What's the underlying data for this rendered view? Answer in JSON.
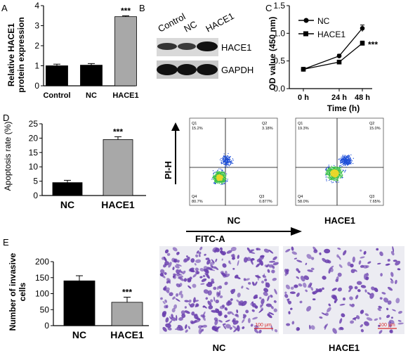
{
  "colors": {
    "black": "#000000",
    "gray": "#a8a8a8",
    "stain": "#6a3fae",
    "scale": "#d92c2c",
    "dot_blue": "#1e4fd8",
    "dot_green": "#3cc04a",
    "dot_yellow": "#e8d62a"
  },
  "panels": {
    "A": {
      "letter": "A",
      "chart_data": {
        "type": "bar",
        "ylabel_line1": "Relative HACE1",
        "ylabel_line2": "protein expression",
        "categories": [
          "Control",
          "NC",
          "HACE1"
        ],
        "values": [
          1.0,
          1.03,
          3.45
        ],
        "errors": [
          0.08,
          0.08,
          0.04
        ],
        "bar_colors": [
          "#000000",
          "#000000",
          "#a8a8a8"
        ],
        "ylim": [
          0,
          4
        ],
        "yticks": [
          "0",
          "1",
          "2",
          "3",
          "4"
        ],
        "significance": [
          "",
          "",
          "***"
        ]
      }
    },
    "B": {
      "letter": "B",
      "lane_labels": [
        "Control",
        "NC",
        "HACE1"
      ],
      "band_labels": [
        "HACE1",
        "GAPDH"
      ]
    },
    "C": {
      "letter": "C",
      "chart_data": {
        "type": "line",
        "xlabel": "Time (h)",
        "ylabel": "OD value (450 nm)",
        "x": [
          "0 h",
          "24 h",
          "48 h"
        ],
        "series": [
          {
            "name": "NC",
            "marker": "circle",
            "values": [
              0.35,
              0.59,
              1.09
            ],
            "errors": [
              0.02,
              0.03,
              0.06
            ]
          },
          {
            "name": "HACE1",
            "marker": "square",
            "values": [
              0.35,
              0.48,
              0.82
            ],
            "errors": [
              0.02,
              0.02,
              0.04
            ]
          }
        ],
        "ylim": [
          0,
          1.5
        ],
        "yticks": [
          "0.0",
          "0.5",
          "1.0",
          "1.5"
        ],
        "significance": "***"
      }
    },
    "D": {
      "letter": "D",
      "chart_data": {
        "type": "bar",
        "ylabel": "Apoptosis rate (%)",
        "categories": [
          "NC",
          "HACE1"
        ],
        "values": [
          4.5,
          19.5
        ],
        "errors": [
          0.8,
          1.0
        ],
        "bar_colors": [
          "#000000",
          "#a8a8a8"
        ],
        "ylim": [
          0,
          25
        ],
        "yticks": [
          "0",
          "5",
          "10",
          "15",
          "20",
          "25"
        ],
        "significance": [
          "",
          "***"
        ]
      },
      "flow": {
        "y_axis_label": "PI-H",
        "x_axis_label": "FITC-A",
        "plots": [
          {
            "label": "NC",
            "q1": "Q1",
            "q1_val": "15.2%",
            "q2": "Q2",
            "q2_val": "3.18%",
            "q3": "Q3",
            "q3_val": "0.877%",
            "q4": "Q4",
            "q4_val": "80.7%"
          },
          {
            "label": "HACE1",
            "q1": "Q1",
            "q1_val": "19.3%",
            "q2": "Q2",
            "q2_val": "15.0%",
            "q3": "Q3",
            "q3_val": "7.65%",
            "q4": "Q4",
            "q4_val": "58.0%"
          }
        ]
      }
    },
    "E": {
      "letter": "E",
      "chart_data": {
        "type": "bar",
        "ylabel_line1": "Number of invasive",
        "ylabel_line2": "cells",
        "categories": [
          "NC",
          "HACE1"
        ],
        "values": [
          140,
          73
        ],
        "errors": [
          16,
          16
        ],
        "bar_colors": [
          "#000000",
          "#a8a8a8"
        ],
        "ylim": [
          0,
          200
        ],
        "yticks": [
          "0",
          "50",
          "100",
          "150",
          "200"
        ],
        "significance": [
          "",
          "***"
        ]
      },
      "images": [
        {
          "label": "NC",
          "scale_bar": "100 μm"
        },
        {
          "label": "HACE1",
          "scale_bar": "100 μm"
        }
      ]
    }
  }
}
